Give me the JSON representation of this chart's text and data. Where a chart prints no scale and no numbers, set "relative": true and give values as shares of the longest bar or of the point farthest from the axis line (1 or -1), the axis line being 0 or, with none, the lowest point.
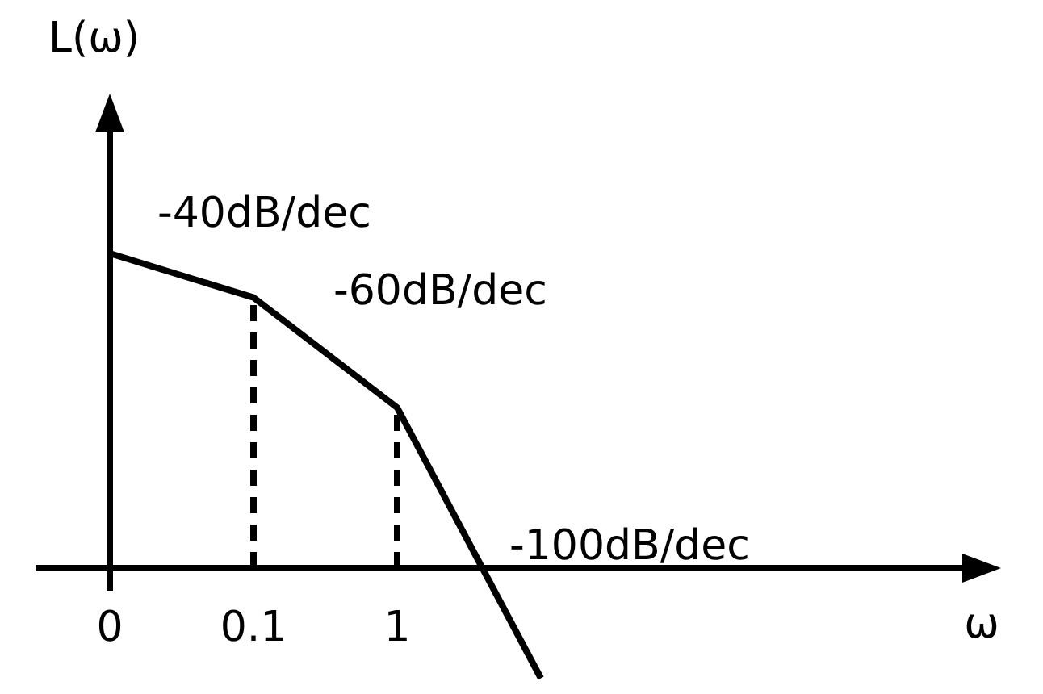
{
  "chart_data": {
    "type": "line",
    "relative": true,
    "categories": [
      "0",
      "0.1",
      "1",
      null
    ],
    "series": [
      {
        "color": "#000000",
        "values": [
          1,
          0.86,
          0.51,
          -0.35
        ]
      }
    ],
    "ylabel": "L(ω)",
    "tick_labels": "x",
    "marker": "none",
    "line_style": "solid",
    "ref_lines": [
      {
        "axis": "x",
        "value": "0.1",
        "line_style": "dashed",
        "color": "#000000"
      },
      {
        "axis": "x",
        "value": "1",
        "line_style": "dashed",
        "color": "#000000"
      }
    ],
    "annotations": [
      "-40dB/dec",
      "-60dB/dec",
      "-100dB/dec",
      "ω"
    ]
  }
}
